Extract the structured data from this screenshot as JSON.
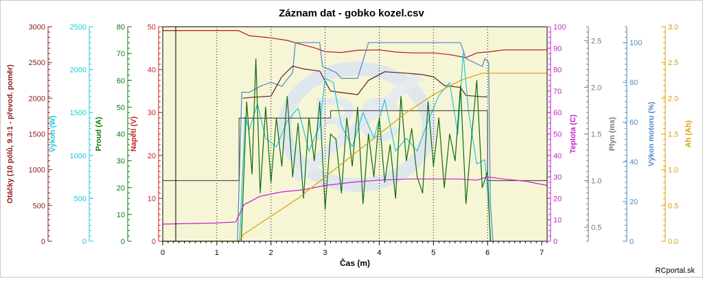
{
  "chart_data": {
    "type": "line",
    "title": "Záznam dat - gobko kozel.csv",
    "xlabel": "Čas (m)",
    "xlim": [
      0,
      7.1
    ],
    "xticks": [
      "0",
      "1",
      "2",
      "3",
      "4",
      "5",
      "6",
      "7"
    ],
    "grid_x": [
      1,
      2,
      3,
      4,
      5,
      6
    ],
    "axes": [
      {
        "key": "otacky",
        "label": "Otáčky (10 pólů, 9.3:1 - převod. poměr)",
        "color": "#8B1A1A",
        "min": 0,
        "max": 3000,
        "ticks": [
          "0",
          "500",
          "1000",
          "1500",
          "2000",
          "2500",
          "3000"
        ],
        "side": "left"
      },
      {
        "key": "vykon",
        "label": "Výkon (W)",
        "color": "#1FC8D8",
        "min": 0,
        "max": 2500,
        "ticks": [
          "0",
          "500",
          "1000",
          "1500",
          "2000",
          "2500"
        ],
        "side": "left"
      },
      {
        "key": "proud",
        "label": "Proud (A)",
        "color": "#0A7A0A",
        "min": 0,
        "max": 80,
        "ticks": [
          "0",
          "10",
          "20",
          "30",
          "40",
          "50",
          "60",
          "70",
          "80"
        ],
        "side": "left"
      },
      {
        "key": "napeti",
        "label": "Napětí (V)",
        "color": "#C81E1E",
        "min": 0,
        "max": 50,
        "ticks": [
          "0",
          "10",
          "20",
          "30",
          "40",
          "50"
        ],
        "side": "left"
      },
      {
        "key": "teplota",
        "label": "Teplota (C)",
        "color": "#C81EC8",
        "min": 0,
        "max": 100,
        "ticks": [
          "0",
          "10",
          "20",
          "30",
          "40",
          "50",
          "60",
          "70",
          "80",
          "90",
          "100"
        ],
        "side": "right"
      },
      {
        "key": "plyn",
        "label": "Plyn (ms)",
        "color": "#777777",
        "min": 0.35,
        "max": 2.65,
        "ticks": [
          "0.5",
          "1.0",
          "1.5",
          "2.0",
          "2.5"
        ],
        "tick_values": [
          0.5,
          1.0,
          1.5,
          2.0,
          2.5
        ],
        "side": "right"
      },
      {
        "key": "vykon_motoru",
        "label": "Výkon motoru (%)",
        "color": "#4F86C6",
        "min": 0,
        "max": 108,
        "ticks": [
          "0",
          "20",
          "40",
          "60",
          "80",
          "100"
        ],
        "tick_values": [
          0,
          20,
          40,
          60,
          80,
          100
        ],
        "side": "right"
      },
      {
        "key": "ah",
        "label": "Ah (Ah)",
        "color": "#D8A000",
        "min": 0,
        "max": 3.0,
        "ticks": [
          "0.0",
          "0.5",
          "1.0",
          "1.5",
          "2.0",
          "2.5",
          "3.0"
        ],
        "side": "right"
      }
    ],
    "series": [
      {
        "axis": "napeti",
        "color": "#B0181C",
        "x": [
          0,
          1.4,
          1.6,
          2.0,
          2.3,
          2.5,
          2.8,
          3.0,
          3.3,
          3.6,
          4.0,
          4.3,
          4.6,
          5.0,
          5.3,
          5.6,
          5.8,
          6.0,
          6.3,
          7.1
        ],
        "y": [
          49.1,
          49.1,
          47.9,
          47.4,
          46.8,
          46.1,
          45.1,
          44.2,
          44.0,
          44.5,
          44.6,
          44.1,
          43.9,
          43.9,
          43.5,
          42.8,
          43.9,
          44.1,
          44.6,
          44.6
        ]
      },
      {
        "axis": "vykon_motoru",
        "color": "#4F86C6",
        "x": [
          0,
          1.38,
          1.46,
          1.6,
          1.8,
          2.0,
          2.2,
          2.4,
          2.45,
          2.9,
          2.95,
          3.2,
          3.3,
          3.6,
          3.8,
          4.3,
          4.5,
          4.9,
          5.1,
          5.5,
          5.6,
          5.9,
          5.95,
          6.02,
          6.05,
          6.1
        ],
        "y": [
          0,
          0,
          75,
          75,
          78,
          80,
          78,
          85,
          100,
          100,
          88,
          85,
          82,
          82,
          100,
          100,
          100,
          100,
          100,
          100,
          92,
          88,
          92,
          90,
          20,
          0
        ]
      },
      {
        "axis": "otacky",
        "color": "#5A1F1F",
        "x": [
          1.48,
          1.6,
          2.0,
          2.2,
          2.4,
          2.6,
          2.9,
          3.1,
          3.3,
          3.6,
          3.8,
          4.1,
          4.5,
          4.8,
          5.0,
          5.2,
          5.5,
          5.6,
          5.9,
          6.0
        ],
        "y": [
          2000,
          2010,
          2030,
          2300,
          2450,
          2410,
          2380,
          2100,
          2080,
          2050,
          2250,
          2370,
          2350,
          2330,
          2300,
          2180,
          2150,
          2040,
          2020,
          2020
        ]
      },
      {
        "axis": "vykon",
        "color": "#1FC8D8",
        "x": [
          1.42,
          1.52,
          1.6,
          1.75,
          1.9,
          2.1,
          2.3,
          2.5,
          2.7,
          2.9,
          3.0,
          3.15,
          3.3,
          3.5,
          3.7,
          3.9,
          4.1,
          4.3,
          4.5,
          4.7,
          4.9,
          5.1,
          5.3,
          5.45,
          5.55,
          5.65,
          5.8,
          5.95,
          6.02,
          6.06
        ],
        "y": [
          0,
          1450,
          1300,
          1600,
          1200,
          1100,
          1400,
          1550,
          1050,
          1350,
          1900,
          1850,
          1350,
          1100,
          1500,
          1200,
          1650,
          1050,
          1200,
          1050,
          1400,
          1700,
          1850,
          1250,
          2200,
          1500,
          900,
          950,
          400,
          0
        ]
      },
      {
        "axis": "proud",
        "color": "#0A6A0A",
        "x": [
          1.45,
          1.55,
          1.65,
          1.72,
          1.8,
          1.9,
          2.0,
          2.1,
          2.2,
          2.3,
          2.4,
          2.5,
          2.6,
          2.7,
          2.8,
          2.9,
          3.0,
          3.1,
          3.2,
          3.3,
          3.4,
          3.5,
          3.6,
          3.7,
          3.8,
          3.9,
          4.0,
          4.1,
          4.2,
          4.3,
          4.4,
          4.5,
          4.6,
          4.7,
          4.8,
          4.9,
          5.0,
          5.1,
          5.2,
          5.3,
          5.4,
          5.5,
          5.6,
          5.7,
          5.8,
          5.9,
          6.0,
          6.05
        ],
        "y": [
          0,
          52,
          25,
          68,
          18,
          50,
          22,
          46,
          28,
          54,
          24,
          44,
          16,
          46,
          30,
          52,
          12,
          40,
          38,
          18,
          46,
          28,
          50,
          14,
          40,
          24,
          46,
          22,
          36,
          16,
          54,
          30,
          42,
          24,
          18,
          52,
          28,
          46,
          20,
          40,
          30,
          58,
          14,
          38,
          60,
          20,
          26,
          0
        ]
      },
      {
        "axis": "plyn",
        "color": "#555555",
        "x": [
          0,
          1.41,
          1.41,
          3.1,
          3.1,
          6.0,
          6.0,
          7.1
        ],
        "y": [
          1.0,
          1.0,
          1.67,
          1.67,
          1.75,
          1.75,
          1.0,
          1.0
        ]
      },
      {
        "axis": "teplota",
        "color": "#C81EC8",
        "x": [
          0,
          1.0,
          1.35,
          1.5,
          1.8,
          2.2,
          2.6,
          3.0,
          3.5,
          4.0,
          4.5,
          5.0,
          5.5,
          5.8,
          6.0,
          6.3,
          6.7,
          7.1
        ],
        "y": [
          8,
          8.5,
          9,
          17,
          21,
          23,
          24,
          26,
          27.5,
          28.5,
          29,
          29,
          29,
          28.5,
          30,
          29,
          28,
          26
        ]
      },
      {
        "axis": "ah",
        "color": "#D8A000",
        "x": [
          0,
          1.4,
          1.5,
          2.0,
          2.5,
          3.0,
          3.5,
          4.0,
          4.5,
          5.0,
          5.5,
          5.9,
          6.0,
          7.1
        ],
        "y": [
          0,
          0,
          0.1,
          0.35,
          0.6,
          0.9,
          1.2,
          1.5,
          1.8,
          2.05,
          2.25,
          2.35,
          2.35,
          2.35
        ]
      }
    ],
    "watermark_text": "RC",
    "credit": "RCportal.sk"
  }
}
